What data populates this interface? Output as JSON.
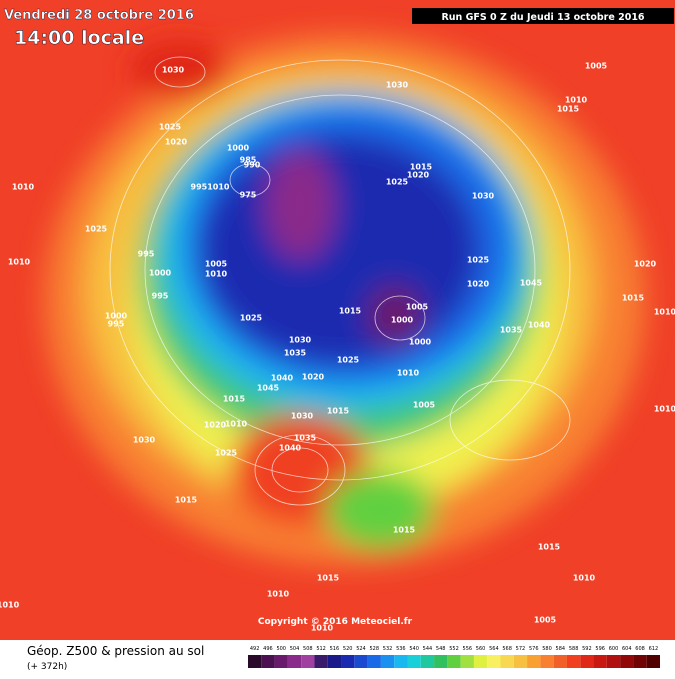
{
  "header": {
    "date": "Vendredi 28 octobre 2016",
    "time": "14:00 locale",
    "run": "Run GFS 0 Z du Jeudi 13 octobre 2016"
  },
  "copyright": "Copyright © 2016 Meteociel.fr",
  "footer": {
    "title": "Géop. Z500 & pression au sol",
    "lead": "(+ 372h)"
  },
  "pressure_labels": [
    "1030",
    "1030",
    "1005",
    "1010",
    "1015",
    "1025",
    "1020",
    "1000",
    "985",
    "990",
    "1015",
    "1020",
    "1025",
    "1030",
    "9951010",
    "975",
    "1010",
    "1025",
    "1010",
    "995",
    "1000",
    "995",
    "1005",
    "1010",
    "1025",
    "1020",
    "1045",
    "1020",
    "1015",
    "1010",
    "1040",
    "1035",
    "1025",
    "1015",
    "1005",
    "1000",
    "1000",
    "1030",
    "1035",
    "1025",
    "1010",
    "1020",
    "1040",
    "1045",
    "1015",
    "1015",
    "1005",
    "1030",
    "1020",
    "1010",
    "1035",
    "1040",
    "1030",
    "1025",
    "1010",
    "1015",
    "1015",
    "1015",
    "1015",
    "1010",
    "1010",
    "1010",
    "1005",
    "1010",
    "1000",
    "995"
  ],
  "legend": {
    "values": [
      "492",
      "496",
      "500",
      "504",
      "508",
      "512",
      "516",
      "520",
      "524",
      "528",
      "532",
      "536",
      "540",
      "544",
      "548",
      "552",
      "556",
      "560",
      "564",
      "568",
      "572",
      "576",
      "580",
      "584",
      "588",
      "592",
      "596",
      "600",
      "604",
      "608",
      "612"
    ],
    "colors": [
      "#2a0a2a",
      "#4a1050",
      "#6a1a6a",
      "#8a2a8a",
      "#a040a0",
      "#3a1a6a",
      "#1a1a8a",
      "#1a2ab0",
      "#1a4ad0",
      "#1a6ae8",
      "#1a90f0",
      "#1ab8f0",
      "#1ad0d8",
      "#20c8a0",
      "#30c060",
      "#60d040",
      "#a0e040",
      "#e0f040",
      "#f8f060",
      "#f8d850",
      "#f8c040",
      "#f8a030",
      "#f88030",
      "#f06028",
      "#f04020",
      "#e02818",
      "#c81810",
      "#b01010",
      "#900808",
      "#700404",
      "#500000"
    ]
  }
}
